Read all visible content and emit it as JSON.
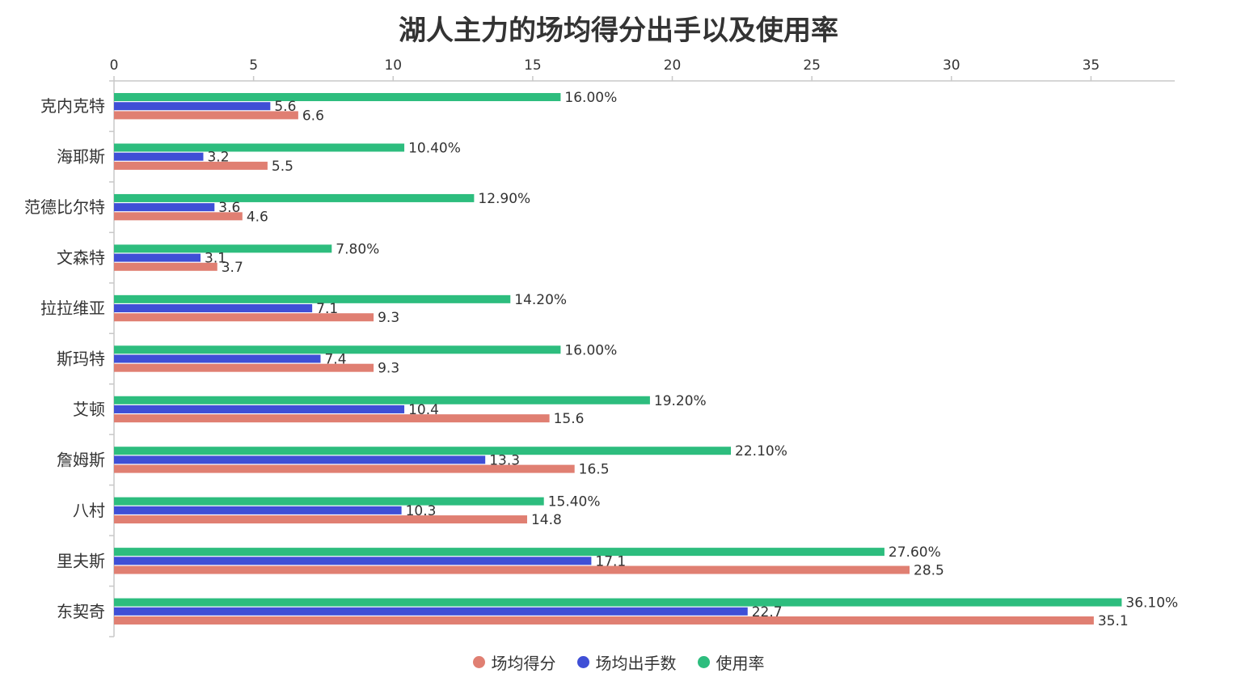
{
  "chart_data": {
    "type": "bar",
    "orientation": "horizontal",
    "title": "湖人主力的场均得分出手以及使用率",
    "categories": [
      "克内克特",
      "海耶斯",
      "范德比尔特",
      "文森特",
      "拉拉维亚",
      "斯玛特",
      "艾顿",
      "詹姆斯",
      "八村",
      "里夫斯",
      "东契奇"
    ],
    "series": [
      {
        "name": "场均得分",
        "color": "#e07f72",
        "values": [
          6.6,
          5.5,
          4.6,
          3.7,
          9.3,
          9.3,
          15.6,
          16.5,
          14.8,
          28.5,
          35.1
        ],
        "labels": [
          "6.6",
          "5.5",
          "4.6",
          "3.7",
          "9.3",
          "9.3",
          "15.6",
          "16.5",
          "14.8",
          "28.5",
          "35.1"
        ]
      },
      {
        "name": "场均出手数",
        "color": "#3f4fd6",
        "values": [
          5.6,
          3.2,
          3.6,
          3.1,
          7.1,
          7.4,
          10.4,
          13.3,
          10.3,
          17.1,
          22.7
        ],
        "labels": [
          "5.6",
          "3.2",
          "3.6",
          "3.1",
          "7.1",
          "7.4",
          "10.4",
          "13.3",
          "10.3",
          "17.1",
          "22.7"
        ]
      },
      {
        "name": "使用率",
        "color": "#2dbd7e",
        "values": [
          16.0,
          10.4,
          12.9,
          7.8,
          14.2,
          16.0,
          19.2,
          22.1,
          15.4,
          27.6,
          36.1
        ],
        "labels": [
          "16.00%",
          "10.40%",
          "12.90%",
          "7.80%",
          "14.20%",
          "16.00%",
          "19.20%",
          "22.10%",
          "15.40%",
          "27.60%",
          "36.10%"
        ]
      }
    ],
    "xaxis": {
      "position": "top",
      "min": 0,
      "max": 38,
      "ticks": [
        0,
        5,
        10,
        15,
        20,
        25,
        30,
        35
      ]
    },
    "grid": false,
    "legend": "bottom"
  }
}
